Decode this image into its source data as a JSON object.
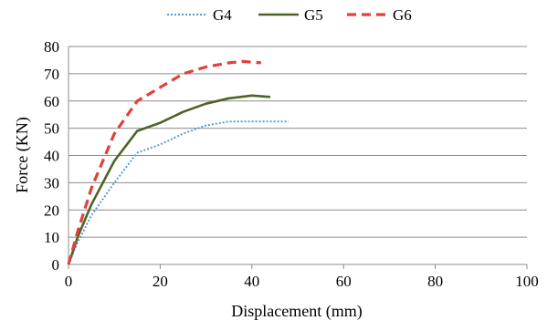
{
  "chart_data": {
    "type": "line",
    "title": "",
    "xlabel": "Displacement (mm)",
    "ylabel": "Force (KN)",
    "xlim": [
      0,
      100
    ],
    "ylim": [
      0,
      80
    ],
    "x_ticks": [
      "0",
      "20",
      "40",
      "60",
      "80",
      "100"
    ],
    "y_ticks": [
      "0",
      "10",
      "20",
      "30",
      "40",
      "50",
      "60",
      "70",
      "80"
    ],
    "grid": "horizontal",
    "legend_position": "top",
    "series": [
      {
        "name": "G4",
        "color": "#5b9bd5",
        "style": "dotted",
        "points": [
          [
            0,
            0
          ],
          [
            2,
            8
          ],
          [
            5,
            18
          ],
          [
            10,
            30
          ],
          [
            15,
            41
          ],
          [
            20,
            44
          ],
          [
            25,
            48
          ],
          [
            30,
            51
          ],
          [
            35,
            52.5
          ],
          [
            40,
            52.5
          ],
          [
            48,
            52.5
          ]
        ]
      },
      {
        "name": "G5",
        "color": "#4f6228",
        "style": "solid",
        "points": [
          [
            0,
            0
          ],
          [
            2,
            10
          ],
          [
            5,
            22
          ],
          [
            10,
            38
          ],
          [
            15,
            49
          ],
          [
            20,
            52
          ],
          [
            25,
            56
          ],
          [
            30,
            59
          ],
          [
            35,
            61
          ],
          [
            40,
            62
          ],
          [
            44,
            61.5
          ]
        ]
      },
      {
        "name": "G6",
        "color": "#e0413c",
        "style": "dashed",
        "points": [
          [
            0,
            0
          ],
          [
            2,
            12
          ],
          [
            5,
            28
          ],
          [
            10,
            48
          ],
          [
            15,
            60
          ],
          [
            20,
            65
          ],
          [
            25,
            70
          ],
          [
            30,
            72.5
          ],
          [
            35,
            74
          ],
          [
            38,
            74.5
          ],
          [
            42,
            74
          ]
        ]
      }
    ]
  }
}
